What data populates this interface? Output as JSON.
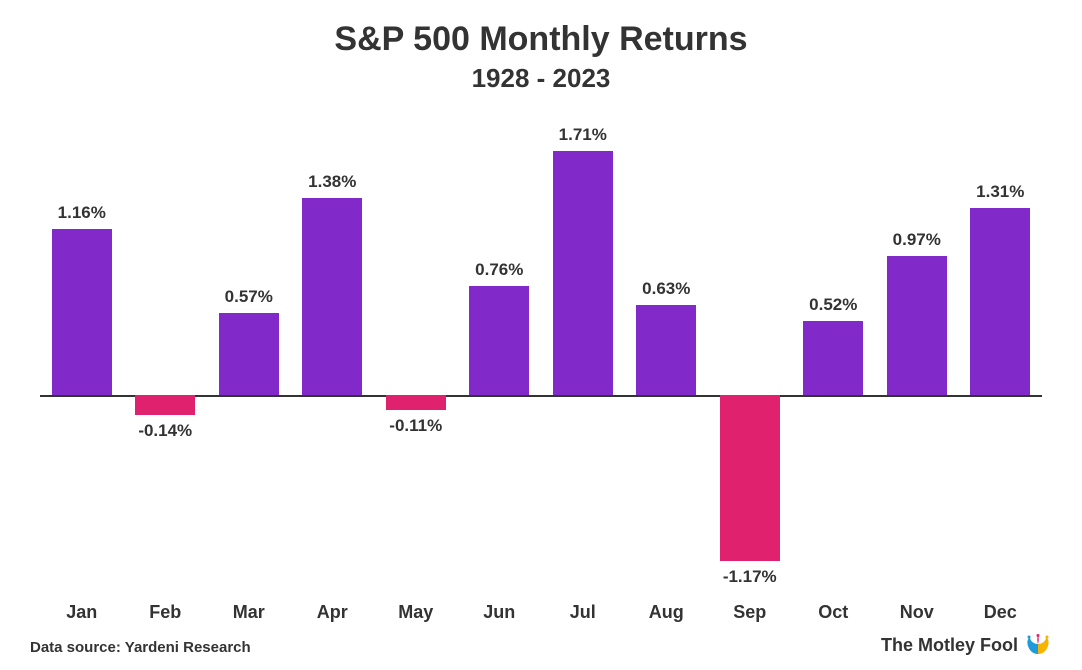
{
  "chart": {
    "type": "bar",
    "title": "S&P 500 Monthly Returns",
    "subtitle": "1928 - 2023",
    "title_fontsize": 34,
    "subtitle_fontsize": 26,
    "label_fontsize": 17,
    "xlabel_fontsize": 18,
    "background_color": "#ffffff",
    "axis_color": "#333333",
    "text_color": "#333333",
    "positive_color": "#8229c9",
    "negative_color": "#e0216e",
    "ylim_min": -1.4,
    "ylim_max": 1.9,
    "baseline_y": 0,
    "bar_width_pct": 84,
    "categories": [
      "Jan",
      "Feb",
      "Mar",
      "Apr",
      "May",
      "Jun",
      "Jul",
      "Aug",
      "Sep",
      "Oct",
      "Nov",
      "Dec"
    ],
    "values": [
      1.16,
      -0.14,
      0.57,
      1.38,
      -0.11,
      0.76,
      1.71,
      0.63,
      -1.17,
      0.52,
      0.97,
      1.31
    ],
    "value_labels": [
      "1.16%",
      "-0.14%",
      "0.57%",
      "1.38%",
      "-0.11%",
      "0.76%",
      "1.71%",
      "0.63%",
      "-1.17%",
      "0.52%",
      "0.97%",
      "1.31%"
    ]
  },
  "footer": {
    "source": "Data source: Yardeni Research",
    "brand": "The Motley Fool",
    "source_fontsize": 15,
    "brand_fontsize": 18,
    "hat_colors": {
      "left": "#1f9adb",
      "mid": "#e0216e",
      "right": "#f5b400"
    }
  }
}
